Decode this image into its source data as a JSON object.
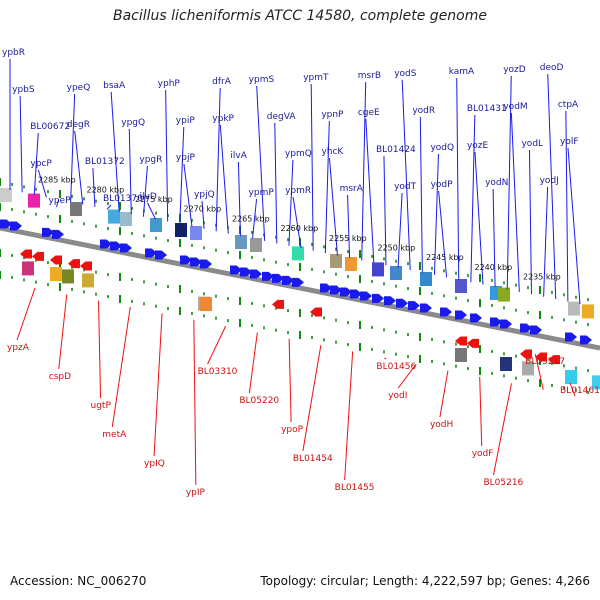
{
  "title": "Bacillus licheniformis ATCC 14580, complete genome",
  "accession": "Accession: NC_006270",
  "summary": "Topology: circular; Length: 4,222,597 bp; Genes: 4,266",
  "scale_labels": [
    "2285 kbp",
    "2280 kbp",
    "2275 kbp",
    "2270 kbp",
    "2265 kbp",
    "2260 kbp",
    "2255 kbp",
    "2250 kbp",
    "2245 kbp",
    "2240 kbp",
    "2235 kbp"
  ],
  "top_labels": [
    "ypbR",
    "ypbS",
    "BL00672",
    "ypcP",
    "ypeP",
    "ypeQ",
    "degR",
    "BL01372",
    "BL01370",
    "bsaA",
    "ypgQ",
    "ypgR",
    "ilvD",
    "yphP",
    "ypiP",
    "ypjP",
    "ypjQ",
    "dfrA",
    "ypkP",
    "ilvA",
    "ypmP",
    "ypmS",
    "degVA",
    "ypmQ",
    "ypmR",
    "ypmT",
    "ypnP",
    "yhcK",
    "msrA",
    "msrB",
    "cgeE",
    "BL01424",
    "yodT",
    "yodS",
    "yodR",
    "yodQ",
    "yodP",
    "kamA",
    "BL01431",
    "yozE",
    "yodN",
    "yozD",
    "yodM",
    "yodL",
    "yodJ",
    "deoD",
    "ctpA",
    "yolF"
  ],
  "bottom_labels": [
    "ypzA",
    "cspD",
    "ugtP",
    "metA",
    "ypIQ",
    "ypIP",
    "BL03310",
    "BL05220",
    "ypoP",
    "BL01454",
    "BL01455",
    "BL01456",
    "yodI",
    "yodH",
    "yodF",
    "BL05216",
    "BL05217",
    "BL01461"
  ],
  "colors": {
    "forward": "#1a1aee",
    "reverse": "#ee1111",
    "tick": "#118811",
    "backbone": "#8a8a8a"
  }
}
